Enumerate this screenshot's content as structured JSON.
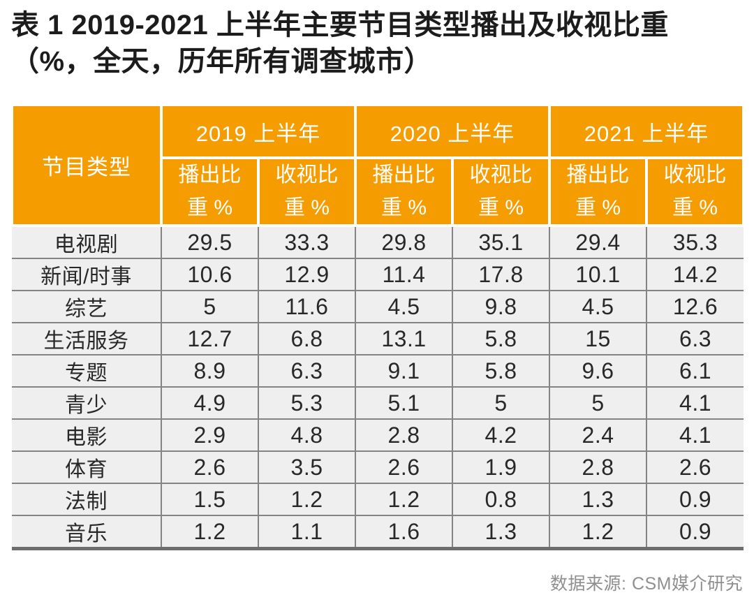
{
  "title": {
    "line1": "表 1 2019-2021 上半年主要节目类型播出及收视比重",
    "line2": "（%，全天，历年所有调查城市）"
  },
  "source": "数据来源: CSM媒介研究",
  "colors": {
    "header_bg": "#F49C00",
    "header_text": "#FFFFFF",
    "row_bg": "#EFEFEF",
    "grid_line": "#848484",
    "bottom_border": "#6D6D6D",
    "title_text": "#1C1C1C",
    "source_text": "#8F8F8F"
  },
  "chart_data": {
    "type": "table",
    "title": "表 1 2019-2021 上半年主要节目类型播出及收视比重（%，全天，历年所有调查城市）",
    "corner_header": "节目类型",
    "year_groups": [
      "2019 上半年",
      "2020 上半年",
      "2021 上半年"
    ],
    "sub_headers": [
      "播出比重 %",
      "收视比重 %",
      "播出比重 %",
      "收视比重 %",
      "播出比重 %",
      "收视比重 %"
    ],
    "rows": [
      {
        "category": "电视剧",
        "values": [
          "29.5",
          "33.3",
          "29.8",
          "35.1",
          "29.4",
          "35.3"
        ]
      },
      {
        "category": "新闻/时事",
        "values": [
          "10.6",
          "12.9",
          "11.4",
          "17.8",
          "10.1",
          "14.2"
        ]
      },
      {
        "category": "综艺",
        "values": [
          "5",
          "11.6",
          "4.5",
          "9.8",
          "4.5",
          "12.6"
        ]
      },
      {
        "category": "生活服务",
        "values": [
          "12.7",
          "6.8",
          "13.1",
          "5.8",
          "15",
          "6.3"
        ]
      },
      {
        "category": "专题",
        "values": [
          "8.9",
          "6.3",
          "9.1",
          "5.8",
          "9.6",
          "6.1"
        ]
      },
      {
        "category": "青少",
        "values": [
          "4.9",
          "5.3",
          "5.1",
          "5",
          "5",
          "4.1"
        ]
      },
      {
        "category": "电影",
        "values": [
          "2.9",
          "4.8",
          "2.8",
          "4.2",
          "2.4",
          "4.1"
        ]
      },
      {
        "category": "体育",
        "values": [
          "2.6",
          "3.5",
          "2.6",
          "1.9",
          "2.8",
          "2.6"
        ]
      },
      {
        "category": "法制",
        "values": [
          "1.5",
          "1.2",
          "1.2",
          "0.8",
          "1.3",
          "0.9"
        ]
      },
      {
        "category": "音乐",
        "values": [
          "1.2",
          "1.1",
          "1.6",
          "1.3",
          "1.2",
          "0.9"
        ]
      }
    ],
    "source": "数据来源: CSM媒介研究"
  }
}
